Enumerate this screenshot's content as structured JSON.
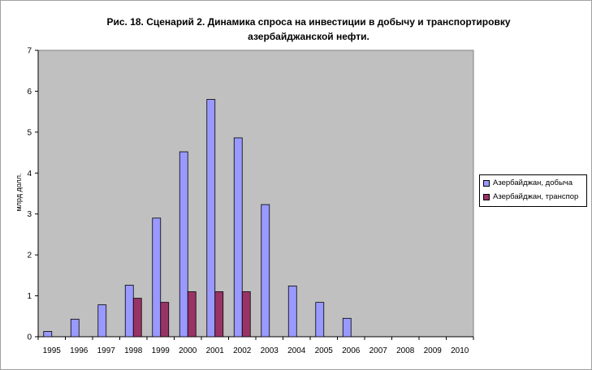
{
  "chart_data": {
    "type": "bar",
    "title": "Рис. 18. Сценарий 2. Динамика спроса на инвестиции в добычу и транспортировку азербайджанской нефти.",
    "ylabel": "млрд долл.",
    "xlabel": "",
    "ylim": [
      0,
      7
    ],
    "yticks": [
      0,
      1,
      2,
      3,
      4,
      5,
      6,
      7
    ],
    "grid": false,
    "legend_position": "right",
    "categories": [
      "1995",
      "1996",
      "1997",
      "1998",
      "1999",
      "2000",
      "2001",
      "2002",
      "2003",
      "2004",
      "2005",
      "2006",
      "2007",
      "2008",
      "2009",
      "2010"
    ],
    "series": [
      {
        "name": "Азербайджан, добыча",
        "color": "#9999ff",
        "values": [
          0.13,
          0.43,
          0.78,
          1.26,
          2.9,
          4.52,
          5.8,
          4.86,
          3.23,
          1.24,
          0.84,
          0.45,
          0,
          0,
          0,
          0
        ]
      },
      {
        "name": "Азербайджан, транспор",
        "color": "#993366",
        "values": [
          0,
          0,
          0,
          0.94,
          0.84,
          1.1,
          1.1,
          1.1,
          0,
          0,
          0,
          0,
          0,
          0,
          0,
          0
        ]
      }
    ],
    "plot_background": "#c0c0c0"
  }
}
